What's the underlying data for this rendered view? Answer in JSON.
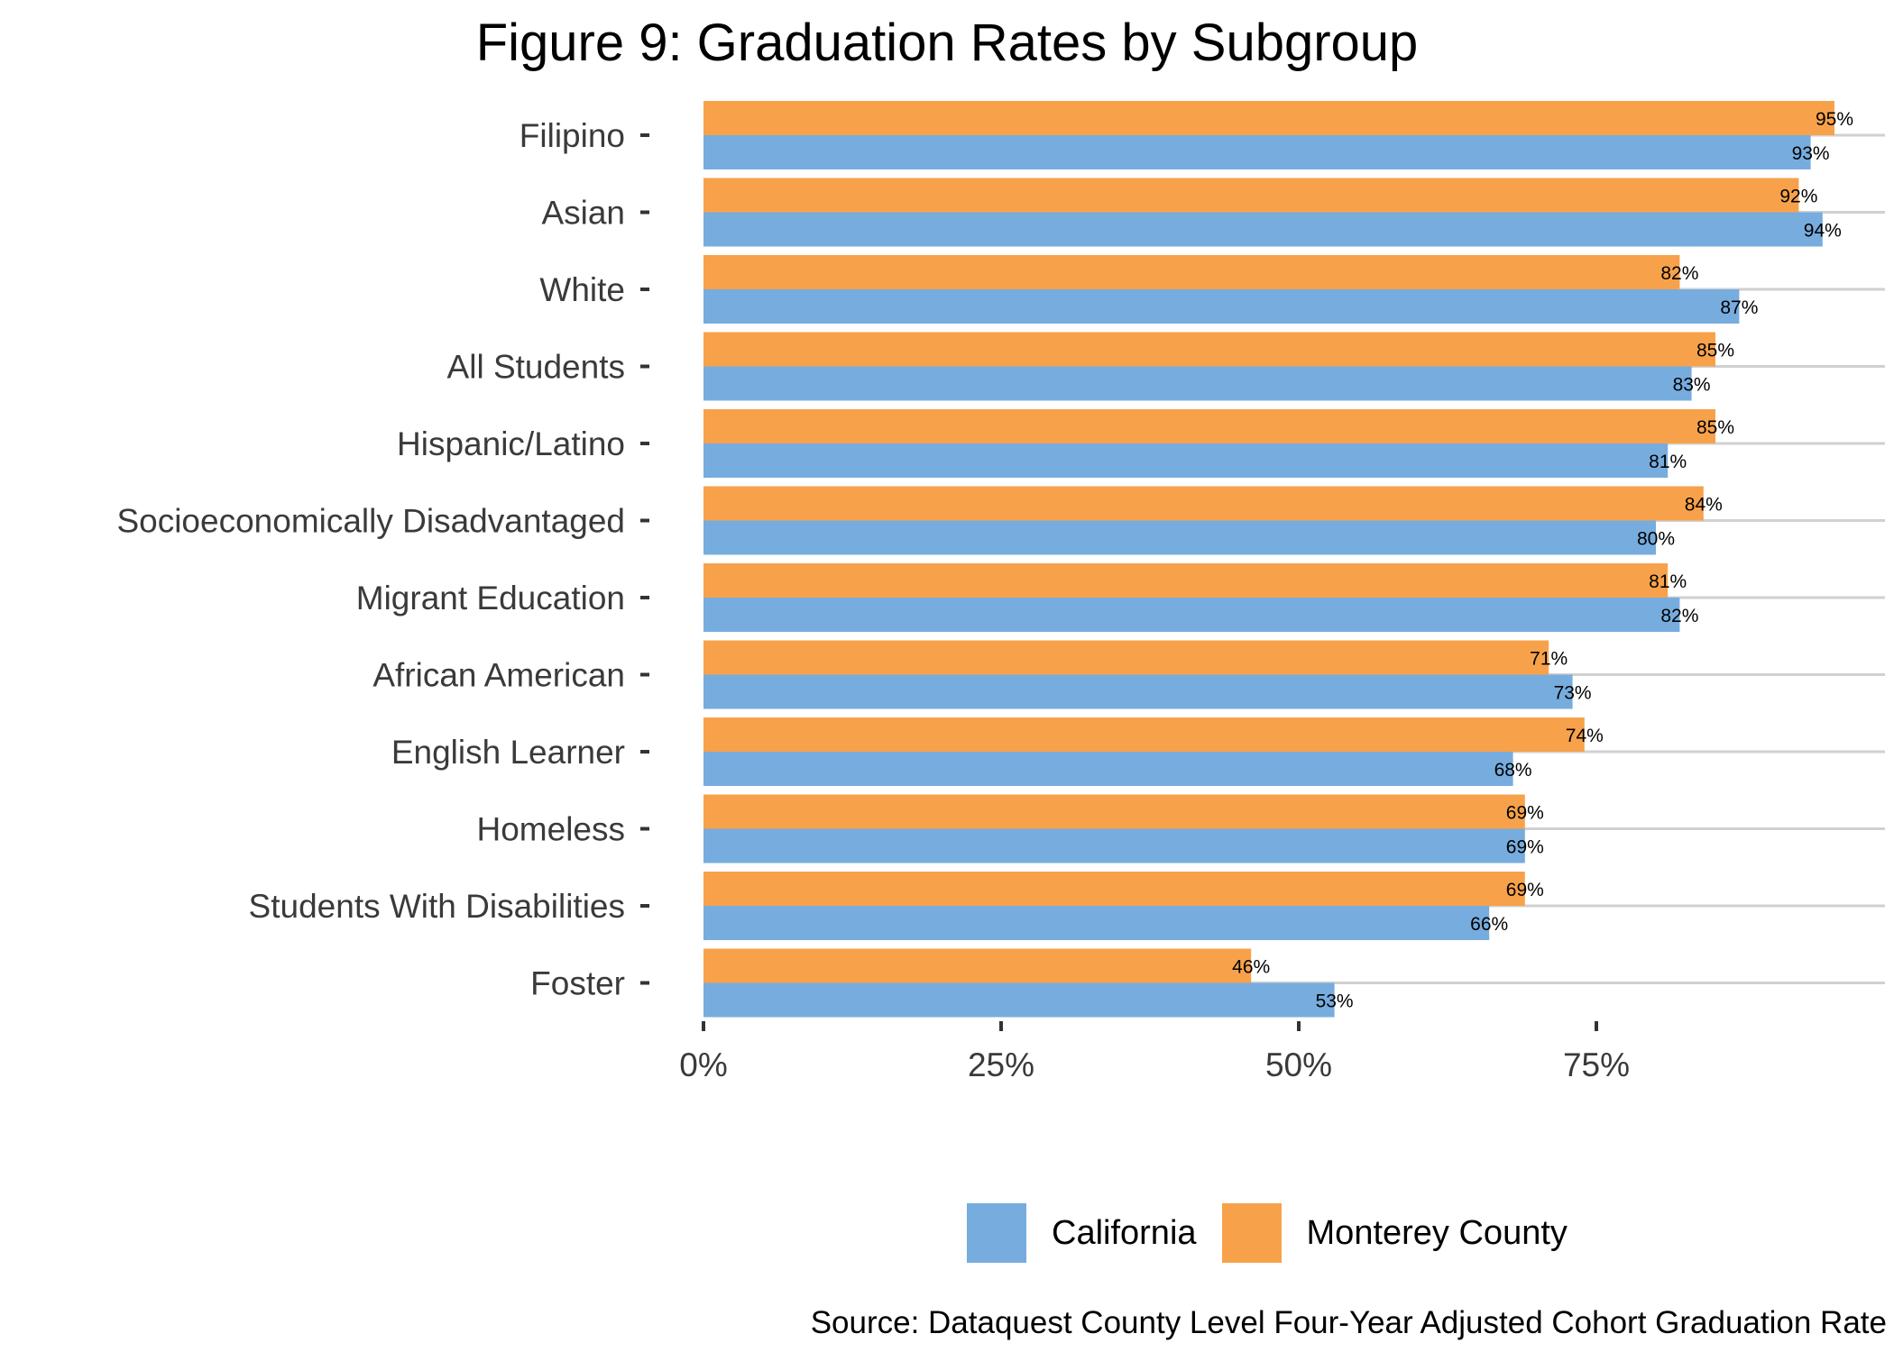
{
  "chart_data": {
    "type": "bar",
    "orientation": "horizontal",
    "title": "Figure 9: Graduation Rates by Subgroup",
    "caption": "Source: Dataquest County Level Four-Year Adjusted Cohort Graduation Rate",
    "xlim": [
      0,
      100
    ],
    "x_ticks": [
      "0%",
      "25%",
      "50%",
      "75%"
    ],
    "grid": "horizontal lines only",
    "legend_position": "bottom",
    "categories": [
      "Filipino",
      "Asian",
      "White",
      "All Students",
      "Hispanic/Latino",
      "Socioeconomically Disadvantaged",
      "Migrant Education",
      "African American",
      "English Learner",
      "Homeless",
      "Students With Disabilities",
      "Foster"
    ],
    "series": [
      {
        "name": "Monterey County",
        "color": "#F7A24B",
        "values": [
          95,
          92,
          82,
          85,
          85,
          84,
          81,
          71,
          74,
          69,
          69,
          46
        ],
        "labels": [
          "95%",
          "92%",
          "82%",
          "85%",
          "85%",
          "84%",
          "81%",
          "71%",
          "74%",
          "69%",
          "69%",
          "46%"
        ]
      },
      {
        "name": "California",
        "color": "#77ACDE",
        "values": [
          93,
          94,
          87,
          83,
          81,
          80,
          82,
          73,
          68,
          69,
          66,
          53
        ],
        "labels": [
          "93%",
          "94%",
          "87%",
          "83%",
          "81%",
          "80%",
          "82%",
          "73%",
          "68%",
          "69%",
          "66%",
          "53%"
        ]
      }
    ]
  },
  "legend": [
    {
      "label": "California",
      "color": "#77ACDE"
    },
    {
      "label": "Monterey County",
      "color": "#F7A24B"
    }
  ]
}
